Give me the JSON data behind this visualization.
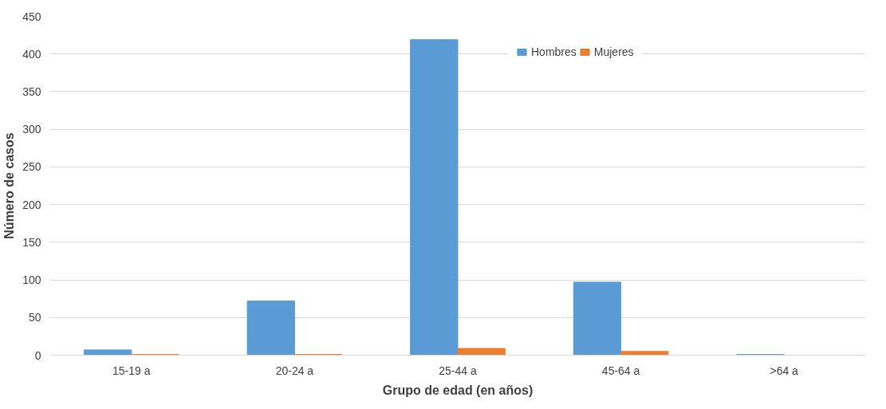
{
  "chart_data": {
    "type": "bar",
    "xlabel": "Grupo de edad (en años)",
    "ylabel": "Número de casos",
    "categories": [
      "15-19 a",
      "20-24 a",
      "25-44 a",
      "45-64 a",
      ">64 a"
    ],
    "series": [
      {
        "name": "Hombres",
        "color": "#5b9bd5",
        "values": [
          7,
          72,
          419,
          97,
          1
        ]
      },
      {
        "name": "Mujeres",
        "color": "#ed7d31",
        "values": [
          1,
          1,
          9,
          5,
          0
        ]
      }
    ],
    "ylim": [
      0,
      450
    ],
    "yticks": [
      0,
      50,
      100,
      150,
      200,
      250,
      300,
      350,
      400,
      450
    ],
    "grid": "y",
    "legend": "top"
  }
}
